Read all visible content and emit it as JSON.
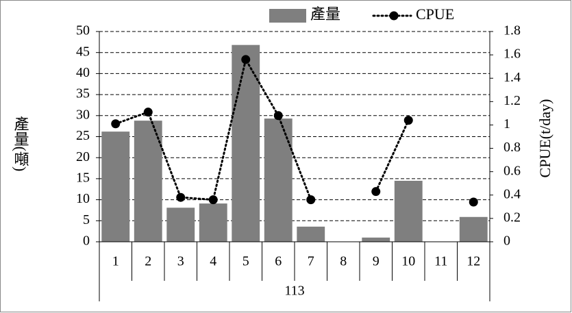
{
  "chart_data": {
    "type": "bar",
    "categories": [
      "1",
      "2",
      "3",
      "4",
      "5",
      "6",
      "7",
      "8",
      "9",
      "10",
      "11",
      "12"
    ],
    "x_group_label": "113",
    "ylabel": "產量(噸)",
    "y2label": "CPUE(t/day)",
    "ylim": [
      0,
      50
    ],
    "yticks": [
      0,
      5,
      10,
      15,
      20,
      25,
      30,
      35,
      40,
      45,
      50
    ],
    "y2lim": [
      0,
      1.8
    ],
    "y2ticks": [
      0,
      0.2,
      0.4,
      0.6,
      0.8,
      1,
      1.2,
      1.4,
      1.6,
      1.8
    ],
    "grid": true,
    "legend": "top",
    "series": [
      {
        "name": "產量",
        "type": "bar",
        "color": "#7f7f7f",
        "values": [
          26.2,
          28.8,
          8.1,
          9.1,
          46.8,
          29.3,
          3.6,
          null,
          1.0,
          14.5,
          null,
          5.9
        ]
      },
      {
        "name": "CPUE",
        "type": "line",
        "axis": "y2",
        "color": "#000000",
        "values": [
          1.01,
          1.11,
          0.38,
          0.36,
          1.56,
          1.08,
          0.36,
          null,
          0.43,
          1.04,
          null,
          0.34
        ]
      }
    ]
  }
}
